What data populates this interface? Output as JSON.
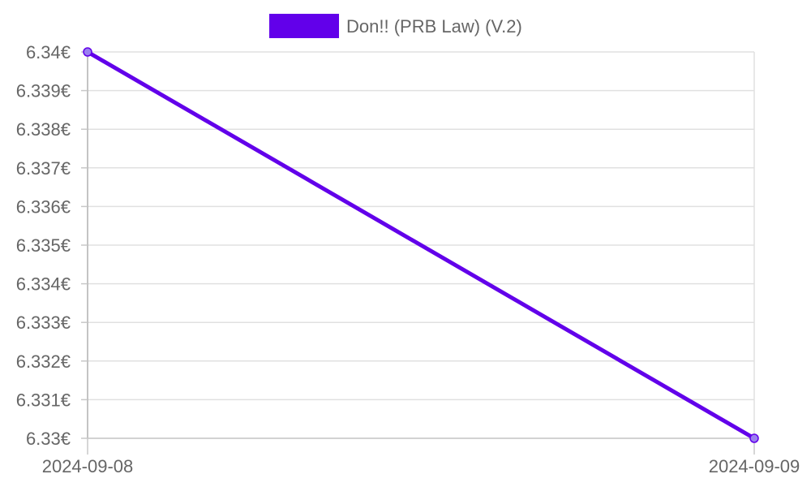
{
  "chart_data": {
    "type": "line",
    "categories": [
      "2024-09-08",
      "2024-09-09"
    ],
    "series": [
      {
        "name": "Don!! (PRB Law) (V.2)",
        "values": [
          6.34,
          6.33
        ],
        "color": "#6200ea"
      }
    ],
    "ylim": [
      6.33,
      6.34
    ],
    "y_ticks": [
      6.34,
      6.339,
      6.338,
      6.337,
      6.336,
      6.335,
      6.334,
      6.333,
      6.332,
      6.331,
      6.33
    ],
    "y_tick_labels": [
      "6.34€",
      "6.339€",
      "6.338€",
      "6.337€",
      "6.336€",
      "6.335€",
      "6.334€",
      "6.333€",
      "6.332€",
      "6.331€",
      "6.33€"
    ],
    "grid": true,
    "legend_position": "top-center"
  }
}
